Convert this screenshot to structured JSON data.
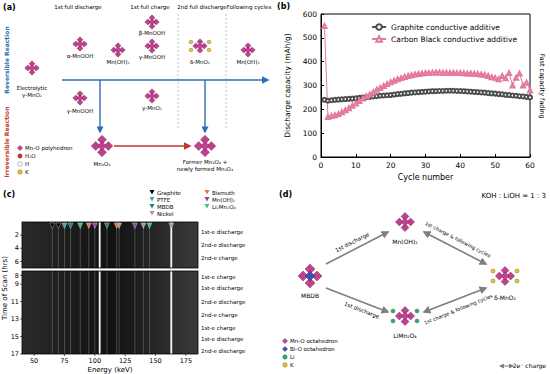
{
  "chart_data": {
    "type": "line",
    "title": "(b)",
    "x": [
      1,
      2,
      3,
      4,
      5,
      6,
      7,
      8,
      9,
      10,
      11,
      12,
      13,
      14,
      15,
      16,
      17,
      18,
      19,
      20,
      21,
      22,
      23,
      24,
      25,
      26,
      27,
      28,
      29,
      30,
      31,
      32,
      33,
      34,
      35,
      36,
      37,
      38,
      39,
      40,
      41,
      42,
      43,
      44,
      45,
      46,
      47,
      48,
      49,
      50,
      51,
      52,
      53,
      54,
      55,
      56,
      57,
      58,
      59,
      60
    ],
    "series": [
      {
        "name": "Graphite conductive additive",
        "color": "#4d4d4d",
        "marker": "circle",
        "values": [
          240,
          236,
          238,
          240,
          241,
          242,
          243,
          244,
          245,
          246,
          248,
          250,
          251,
          252,
          254,
          255,
          257,
          258,
          259,
          260,
          262,
          264,
          265,
          267,
          268,
          270,
          271,
          272,
          273,
          274,
          275,
          276,
          276,
          277,
          277,
          278,
          278,
          278,
          277,
          277,
          276,
          275,
          274,
          273,
          272,
          271,
          270,
          268,
          267,
          266,
          264,
          263,
          261,
          260,
          258,
          257,
          255,
          254,
          252,
          250
        ]
      },
      {
        "name": "Carbon Black conductive additive",
        "color": "#e3799d",
        "marker": "triangle",
        "values": [
          550,
          168,
          172,
          175,
          180,
          188,
          196,
          205,
          215,
          225,
          235,
          245,
          255,
          262,
          272,
          282,
          290,
          298,
          306,
          314,
          320,
          326,
          331,
          336,
          340,
          343,
          346,
          348,
          350,
          352,
          353,
          354,
          355,
          355,
          354,
          354,
          353,
          353,
          352,
          352,
          351,
          350,
          350,
          349,
          348,
          346,
          344,
          340,
          335,
          332,
          326,
          340,
          330,
          352,
          300,
          332,
          350,
          300,
          312,
          280
        ]
      }
    ],
    "xlabel": "Cycle number",
    "ylabel": "Discharge capacity (mAh/g)",
    "xlim": [
      0,
      60
    ],
    "xticks": [
      0,
      10,
      20,
      30,
      40,
      50,
      60
    ],
    "ylim": [
      0,
      600
    ],
    "yticks": [
      0,
      100,
      200,
      300,
      400,
      500,
      600
    ],
    "grid": false,
    "legend": "top-right",
    "annotations": [
      "Fast capacity fading"
    ]
  },
  "panels": {
    "a": {
      "label": "(a)",
      "headers": [
        "1st full discharge",
        "1st full charge",
        "2nd full discharge",
        "Following cycles"
      ],
      "side_labels": {
        "reversible": {
          "text": "Reversible Reaction",
          "color": "#2f6db5"
        },
        "irreversible": {
          "text": "Irreversible Reaction",
          "color": "#c0392b"
        }
      },
      "nodes": {
        "electrolytic": [
          "Electrolytic",
          "γ-MnO₂"
        ],
        "alpha_mnooh": [
          "α-MnOOH"
        ],
        "gamma_mnooh_1": [
          "γ-MnOOH"
        ],
        "mnoh2_1": [
          "Mn(OH)₂"
        ],
        "beta_mnooh": [
          "β-MnOOH"
        ],
        "gamma_mnooh_2": [
          "γ-MnOOH"
        ],
        "gamma_mno2": [
          "γ-MnO₂"
        ],
        "delta_mno2": [
          "δ-MnO₂"
        ],
        "mnoh2_2": [
          "Mn(OH)₂"
        ],
        "mn3o4": [
          "Mn₃O₄"
        ],
        "former": [
          "Former Mn₃O₄ +",
          "newly formed Mn₃O₄"
        ]
      },
      "legend": [
        {
          "label": "Mn-O polyhedron",
          "color": "#c2418f",
          "marker": "diamond"
        },
        {
          "label": "H₂O",
          "color": "#d62728",
          "marker": "circle"
        },
        {
          "label": "H",
          "color": "#ffffff",
          "marker": "circle"
        },
        {
          "label": "K",
          "color": "#f1c40f",
          "marker": "circle"
        }
      ]
    },
    "c": {
      "label": "(c)",
      "xlabel": "Energy (keV)",
      "ylabel": "Time of Scan (hrs)",
      "xlim": [
        40,
        185
      ],
      "xticks": [
        50,
        75,
        100,
        125,
        150,
        175
      ],
      "sections": [
        {
          "ylim": [
            0,
            7
          ],
          "yticks": [
            2,
            4,
            6
          ]
        },
        {
          "ylim": [
            7.5,
            17
          ],
          "yticks": [
            8,
            9,
            11,
            13,
            15,
            17
          ]
        }
      ],
      "phases": [
        {
          "name": "Graphite",
          "color": "#000000",
          "energies": [
            65,
            70
          ]
        },
        {
          "name": "PTFE",
          "color": "#2bb3a8",
          "energies": [
            75
          ]
        },
        {
          "name": "MBDB",
          "color": "#1f7a8c",
          "energies": [
            80,
            110
          ]
        },
        {
          "name": "Nickel",
          "color": "#9a9a9a",
          "energies": [
            120,
            140,
            163
          ]
        },
        {
          "name": "Bismuth",
          "color": "#e8743b",
          "energies": [
            95,
            118
          ]
        },
        {
          "name": "Mn(OH)₂",
          "color": "#8e44ad",
          "energies": [
            100,
            133
          ]
        },
        {
          "name": "Li₂Mn₂O₄",
          "color": "#2ecc71",
          "energies": [
            88,
            145
          ]
        }
      ],
      "bright_lines": [
        104,
        163
      ],
      "steps": [
        {
          "label": "1st-e discharge",
          "time": 1.5
        },
        {
          "label": "2nd-e discharge",
          "time": 3.5
        },
        {
          "label": "2nd-e charge",
          "time": 5.5
        },
        {
          "label": "1st-e charge",
          "time": 8.2
        },
        {
          "label": "1st-e discharge",
          "time": 9.5
        },
        {
          "label": "2nd-e discharge",
          "time": 11
        },
        {
          "label": "2nd-e charge",
          "time": 12.5
        },
        {
          "label": "1st-e charge",
          "time": 14
        },
        {
          "label": "1st-e discharge",
          "time": 15.3
        },
        {
          "label": "2nd-e discharge",
          "time": 16.6
        }
      ]
    },
    "d": {
      "label": "(d)",
      "condition": "KOH : LiOH = 1 : 3",
      "nodes": {
        "mbdb": [
          "MBDB"
        ],
        "mnoh2": [
          "Mn(OH)₂"
        ],
        "limn2o4": [
          "LiMn₂O₄"
        ],
        "delta": [
          "δ-MnO₂"
        ]
      },
      "arrows": {
        "discharge": "1st discharge",
        "charge": "1st charge & following cycles"
      },
      "legend": [
        {
          "label": "Mn-O octahedron",
          "color": "#c2418f",
          "marker": "diamond"
        },
        {
          "label": "Bi-O octahedron",
          "color": "#3b4fb5",
          "marker": "diamond"
        },
        {
          "label": "Li",
          "color": "#27ae60",
          "marker": "circle"
        },
        {
          "label": "K",
          "color": "#f1c40f",
          "marker": "circle"
        }
      ],
      "note": "2e⁻ charge"
    }
  }
}
